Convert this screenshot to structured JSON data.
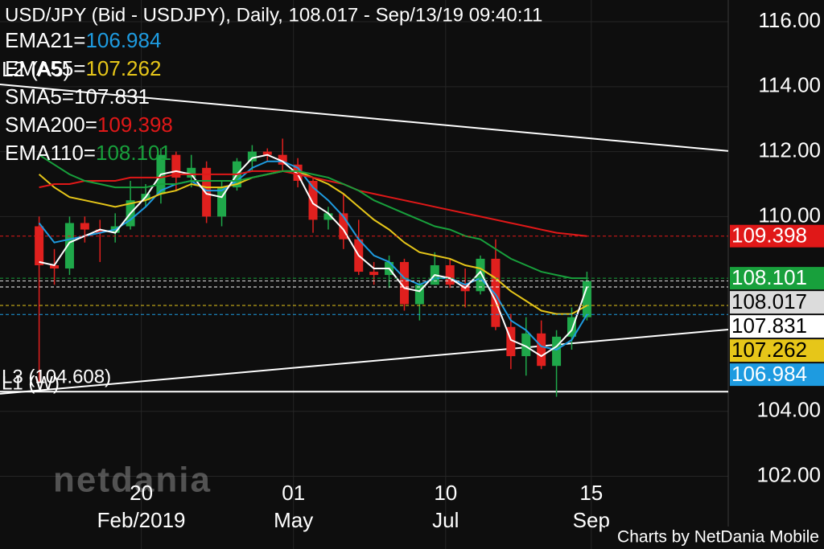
{
  "chart_data": {
    "type": "candlestick",
    "title": "USD/JPY (Bid - USDJPY),  Daily, 108.017 - Sep/13/19 09:40:11",
    "watermark": "netdania",
    "footer": "Charts by NetDania Mobile",
    "xlim": [
      "2018-12-17",
      "2019-11-17"
    ],
    "ylim": [
      99.76,
      116.67
    ],
    "yticks": [
      {
        "value": 116,
        "label": "116.00"
      },
      {
        "value": 114,
        "label": "114.00"
      },
      {
        "value": 112,
        "label": "112.00"
      },
      {
        "value": 110,
        "label": "110.00"
      },
      {
        "value": 104,
        "label": "104.00"
      },
      {
        "value": 102,
        "label": "102.00"
      }
    ],
    "xticks": [
      {
        "value": "2019-02-20",
        "label": "20"
      },
      {
        "value": "2019-05-01",
        "label": "01"
      },
      {
        "value": "2019-07-10",
        "label": "10"
      },
      {
        "value": "2019-09-15",
        "label": "15"
      }
    ],
    "xtick_sublabels": [
      "Feb/2019",
      "May",
      "Jul",
      "Sep"
    ],
    "up_color": "#1fa84a",
    "down_color": "#e0201e",
    "close_tag_color": "#dcdcdc",
    "candles": {
      "x": [
        "2019-01-04",
        "2019-01-11",
        "2019-01-18",
        "2019-01-25",
        "2019-02-01",
        "2019-02-08",
        "2019-02-15",
        "2019-02-22",
        "2019-03-01",
        "2019-03-08",
        "2019-03-15",
        "2019-03-22",
        "2019-03-29",
        "2019-04-05",
        "2019-04-12",
        "2019-04-19",
        "2019-04-26",
        "2019-05-03",
        "2019-05-10",
        "2019-05-17",
        "2019-05-24",
        "2019-05-31",
        "2019-06-07",
        "2019-06-14",
        "2019-06-21",
        "2019-06-28",
        "2019-07-05",
        "2019-07-12",
        "2019-07-19",
        "2019-07-26",
        "2019-08-02",
        "2019-08-09",
        "2019-08-16",
        "2019-08-23",
        "2019-08-30",
        "2019-09-06",
        "2019-09-13"
      ],
      "open": [
        109.7,
        108.5,
        108.4,
        109.8,
        109.6,
        109.5,
        109.7,
        110.5,
        110.7,
        111.9,
        111.2,
        111.5,
        110.0,
        110.9,
        111.7,
        112.0,
        111.9,
        111.6,
        111.1,
        109.9,
        110.1,
        109.3,
        108.3,
        108.2,
        108.6,
        107.3,
        107.9,
        108.5,
        107.9,
        107.7,
        108.7,
        106.6,
        105.7,
        106.4,
        105.4,
        106.3,
        106.9
      ],
      "high": [
        110.0,
        109.0,
        110.0,
        110.0,
        109.9,
        110.1,
        111.1,
        111.0,
        112.1,
        112.0,
        111.9,
        111.7,
        111.1,
        111.8,
        112.2,
        112.1,
        112.4,
        111.8,
        111.2,
        110.3,
        110.7,
        109.9,
        108.6,
        108.8,
        108.7,
        108.0,
        108.9,
        108.7,
        108.4,
        108.8,
        109.3,
        107.0,
        106.9,
        106.8,
        106.5,
        107.2,
        108.3
      ],
      "low": [
        104.87,
        107.9,
        108.2,
        109.2,
        108.6,
        109.2,
        109.6,
        110.3,
        110.4,
        110.8,
        110.9,
        109.8,
        109.7,
        110.8,
        111.4,
        111.7,
        111.4,
        110.9,
        109.5,
        109.6,
        109.0,
        108.2,
        107.9,
        107.8,
        107.1,
        106.8,
        107.9,
        107.8,
        107.2,
        107.6,
        106.5,
        105.3,
        105.1,
        105.3,
        104.45,
        105.9,
        106.8
      ],
      "close": [
        108.5,
        108.4,
        109.8,
        109.6,
        109.5,
        109.7,
        110.5,
        110.7,
        111.9,
        111.2,
        111.5,
        110.0,
        110.9,
        111.7,
        112.0,
        111.9,
        111.6,
        111.1,
        109.9,
        110.1,
        109.3,
        108.3,
        108.2,
        108.6,
        107.3,
        107.9,
        108.5,
        107.9,
        107.7,
        108.7,
        106.6,
        105.7,
        106.4,
        105.4,
        106.3,
        106.9,
        108.017
      ]
    },
    "series": [
      {
        "name": "EMA21=",
        "color": "#1e9be0",
        "tag_text_color": "#ffffff",
        "values": [
          109.8,
          109.2,
          109.3,
          109.4,
          109.5,
          109.6,
          109.9,
          110.3,
          110.8,
          111.0,
          111.1,
          110.8,
          110.8,
          111.1,
          111.5,
          111.7,
          111.7,
          111.5,
          110.9,
          110.5,
          110.0,
          109.3,
          108.8,
          108.6,
          108.1,
          107.9,
          108.1,
          108.1,
          107.9,
          108.1,
          107.6,
          106.8,
          106.5,
          106.0,
          105.9,
          106.2,
          106.984
        ]
      },
      {
        "name": "EMA55=",
        "color": "#e6c619",
        "tag_text_color": "#000000",
        "values": [
          111.3,
          110.9,
          110.6,
          110.5,
          110.4,
          110.3,
          110.4,
          110.5,
          110.7,
          110.8,
          111.0,
          110.9,
          110.9,
          111.0,
          111.2,
          111.3,
          111.4,
          111.4,
          111.2,
          111.0,
          110.7,
          110.3,
          109.9,
          109.6,
          109.2,
          108.9,
          108.8,
          108.7,
          108.5,
          108.4,
          108.1,
          107.7,
          107.4,
          107.1,
          107.0,
          107.0,
          107.262
        ]
      },
      {
        "name": "SMA5=",
        "color": "#ffffff",
        "tag_text_color": "#000000",
        "values": [
          108.6,
          108.5,
          109.2,
          109.4,
          109.6,
          109.5,
          110.1,
          110.6,
          111.3,
          111.4,
          111.3,
          110.7,
          110.6,
          111.3,
          111.8,
          111.9,
          111.7,
          111.3,
          110.4,
          110.1,
          109.6,
          108.8,
          108.4,
          108.4,
          107.8,
          107.7,
          108.2,
          108.1,
          107.8,
          108.3,
          107.4,
          106.2,
          106.0,
          105.7,
          106.0,
          106.5,
          107.831
        ]
      },
      {
        "name": "SMA200=",
        "color": "#e01818",
        "tag_text_color": "#ffffff",
        "values": [
          110.9,
          111.0,
          111.0,
          111.1,
          111.1,
          111.1,
          111.2,
          111.2,
          111.2,
          111.3,
          111.3,
          111.3,
          111.3,
          111.3,
          111.4,
          111.4,
          111.4,
          111.3,
          111.2,
          111.1,
          111.0,
          110.8,
          110.7,
          110.6,
          110.5,
          110.4,
          110.3,
          110.2,
          110.1,
          110.0,
          109.9,
          109.8,
          109.7,
          109.6,
          109.5,
          109.45,
          109.398
        ]
      },
      {
        "name": "EMA110=",
        "color": "#18a03c",
        "tag_text_color": "#ffffff",
        "values": [
          111.9,
          111.6,
          111.3,
          111.1,
          111.0,
          110.9,
          110.9,
          110.9,
          111.0,
          111.0,
          111.1,
          111.1,
          111.1,
          111.1,
          111.2,
          111.3,
          111.4,
          111.4,
          111.3,
          111.2,
          111.0,
          110.8,
          110.5,
          110.3,
          110.1,
          109.9,
          109.7,
          109.6,
          109.4,
          109.3,
          109.0,
          108.7,
          108.5,
          108.3,
          108.2,
          108.1,
          108.101
        ]
      }
    ],
    "trendlines": [
      {
        "label": "L2 (A5)",
        "from": 114.07,
        "to": 112.02
      },
      {
        "label": "L1 (W)",
        "from": 104.54,
        "to": 106.52
      }
    ],
    "hlines": [
      {
        "label": "L3 (104.608)",
        "value": 104.608
      }
    ]
  }
}
